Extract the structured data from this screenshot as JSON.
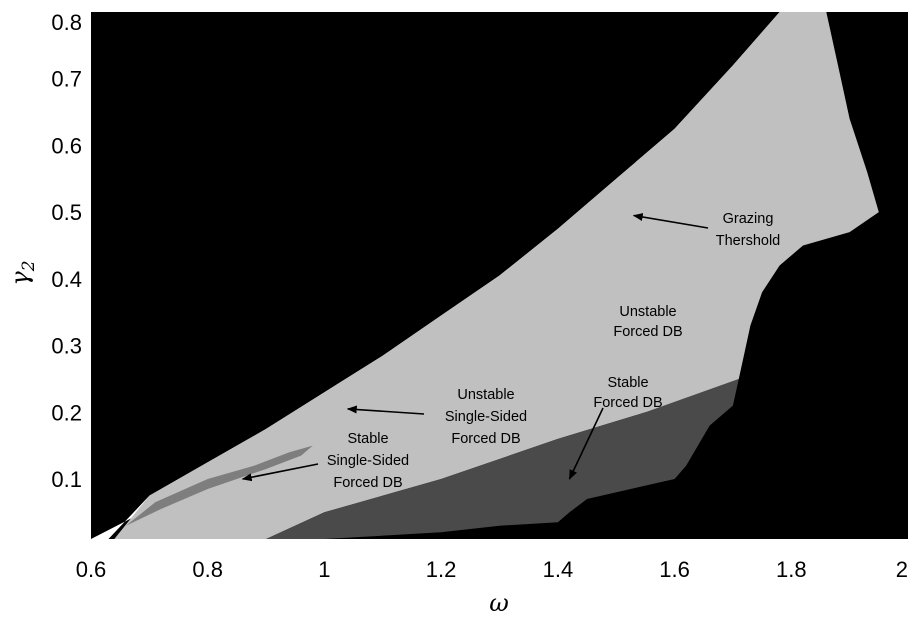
{
  "chart_data": {
    "type": "heatmap",
    "title": "",
    "xlabel": "ω",
    "ylabel": "γ",
    "ylabel_subscript": "2",
    "xlim": [
      0.6,
      2.0
    ],
    "ylim": [
      0.01,
      0.8
    ],
    "xticks": [
      "0.6",
      "0.8",
      "1",
      "1.2",
      "1.4",
      "1.6",
      "1.8",
      "2"
    ],
    "yticks": [
      "0.1",
      "0.2",
      "0.3",
      "0.4",
      "0.5",
      "0.6",
      "0.7",
      "0.8"
    ],
    "grid": false,
    "colors": {
      "background": "#000000",
      "grazing_threshold": "#ffffff",
      "unstable_forced_db": "#c0c0c0",
      "stable_forced_db": "#4a4a4a",
      "stable_single_sided": "#7e7e7e"
    },
    "regions": [
      {
        "id": "grazing",
        "upper": [
          [
            0.6,
            0.01
          ],
          [
            0.7,
            0.055
          ],
          [
            0.8,
            0.1
          ],
          [
            0.9,
            0.15
          ],
          [
            1.0,
            0.2
          ],
          [
            1.1,
            0.25
          ],
          [
            1.2,
            0.305
          ],
          [
            1.3,
            0.365
          ],
          [
            1.4,
            0.43
          ],
          [
            1.5,
            0.5
          ],
          [
            1.6,
            0.575
          ],
          [
            1.7,
            0.66
          ],
          [
            1.8,
            0.75
          ],
          [
            1.85,
            0.8
          ]
        ],
        "lower": [
          [
            1.78,
            0.8
          ],
          [
            1.7,
            0.72
          ],
          [
            1.6,
            0.625
          ],
          [
            1.5,
            0.55
          ],
          [
            1.4,
            0.475
          ],
          [
            1.3,
            0.405
          ],
          [
            1.2,
            0.345
          ],
          [
            1.1,
            0.285
          ],
          [
            1.0,
            0.23
          ],
          [
            0.9,
            0.175
          ],
          [
            0.8,
            0.125
          ],
          [
            0.7,
            0.075
          ],
          [
            0.63,
            0.01
          ]
        ]
      },
      {
        "id": "unstable_forced_db",
        "upper": [
          [
            0.64,
            0.01
          ],
          [
            0.7,
            0.075
          ],
          [
            0.8,
            0.125
          ],
          [
            0.9,
            0.175
          ],
          [
            1.0,
            0.23
          ],
          [
            1.1,
            0.285
          ],
          [
            1.2,
            0.345
          ],
          [
            1.3,
            0.405
          ],
          [
            1.4,
            0.475
          ],
          [
            1.5,
            0.55
          ],
          [
            1.6,
            0.625
          ],
          [
            1.7,
            0.72
          ],
          [
            1.78,
            0.8
          ],
          [
            1.86,
            0.8
          ],
          [
            1.88,
            0.72
          ],
          [
            1.9,
            0.64
          ],
          [
            1.93,
            0.56
          ],
          [
            1.95,
            0.5
          ],
          [
            1.9,
            0.47
          ],
          [
            1.82,
            0.45
          ],
          [
            1.78,
            0.42
          ],
          [
            1.75,
            0.38
          ],
          [
            1.73,
            0.33
          ],
          [
            1.72,
            0.29
          ],
          [
            1.71,
            0.25
          ]
        ],
        "lower": [
          [
            1.7,
            0.23
          ],
          [
            1.55,
            0.2
          ],
          [
            1.4,
            0.16
          ],
          [
            1.2,
            0.1
          ],
          [
            1.0,
            0.05
          ],
          [
            0.9,
            0.01
          ]
        ]
      },
      {
        "id": "stable_forced_db",
        "upper": [
          [
            0.9,
            0.01
          ],
          [
            1.0,
            0.05
          ],
          [
            1.2,
            0.1
          ],
          [
            1.4,
            0.16
          ],
          [
            1.55,
            0.2
          ],
          [
            1.71,
            0.25
          ]
        ],
        "lower": [
          [
            1.7,
            0.21
          ],
          [
            1.66,
            0.18
          ],
          [
            1.64,
            0.15
          ],
          [
            1.62,
            0.12
          ],
          [
            1.6,
            0.1
          ],
          [
            1.55,
            0.09
          ],
          [
            1.45,
            0.07
          ],
          [
            1.42,
            0.05
          ],
          [
            1.4,
            0.035
          ],
          [
            1.3,
            0.03
          ],
          [
            1.2,
            0.02
          ],
          [
            1.0,
            0.01
          ]
        ]
      },
      {
        "id": "stable_single_sided",
        "upper": [
          [
            0.71,
            0.065
          ],
          [
            0.8,
            0.1
          ],
          [
            0.88,
            0.12
          ],
          [
            0.94,
            0.14
          ],
          [
            0.98,
            0.15
          ]
        ],
        "lower": [
          [
            0.96,
            0.135
          ],
          [
            0.9,
            0.115
          ],
          [
            0.8,
            0.085
          ],
          [
            0.72,
            0.055
          ],
          [
            0.66,
            0.03
          ]
        ]
      }
    ],
    "annotations": [
      {
        "lines": [
          "Grazing",
          "Thershold"
        ],
        "arrow_to": [
          1.53,
          0.495
        ]
      },
      {
        "lines": [
          "Unstable",
          "Forced DB"
        ]
      },
      {
        "lines": [
          "Stable",
          "Forced DB"
        ],
        "arrow_to": [
          1.42,
          0.1
        ]
      },
      {
        "lines": [
          "Unstable",
          "Single-Sided",
          "Forced DB"
        ],
        "arrow_to": [
          1.04,
          0.205
        ]
      },
      {
        "lines": [
          "Stable",
          "Single-Sided",
          "Forced DB"
        ],
        "arrow_to": [
          0.86,
          0.1
        ]
      }
    ]
  }
}
